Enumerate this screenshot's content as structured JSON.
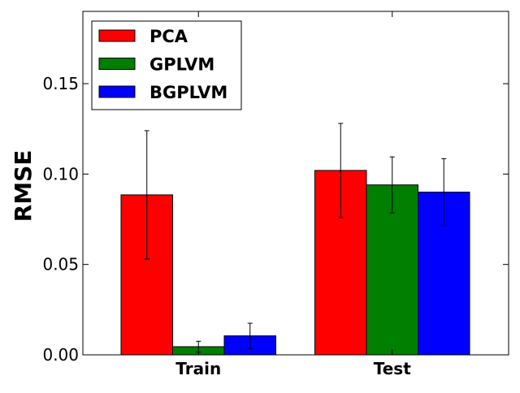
{
  "chart_data": {
    "type": "bar",
    "title": "",
    "xlabel": "",
    "ylabel": "RMSE",
    "categories": [
      "Train",
      "Test"
    ],
    "ylim": [
      0,
      0.19
    ],
    "yticks": [
      0.0,
      0.05,
      0.1,
      0.15
    ],
    "ytick_labels": [
      "0.00",
      "0.05",
      "0.10",
      "0.15"
    ],
    "grid": false,
    "legend_position": "top-left",
    "series": [
      {
        "name": "PCA",
        "color": "#ff0000",
        "values": [
          0.0885,
          0.102
        ],
        "errors": [
          0.0355,
          0.026
        ]
      },
      {
        "name": "GPLVM",
        "color": "#007f00",
        "values": [
          0.0045,
          0.094
        ],
        "errors": [
          0.003,
          0.0155
        ]
      },
      {
        "name": "BGPLVM",
        "color": "#0000ff",
        "values": [
          0.0105,
          0.09
        ],
        "errors": [
          0.007,
          0.0185
        ]
      }
    ]
  }
}
